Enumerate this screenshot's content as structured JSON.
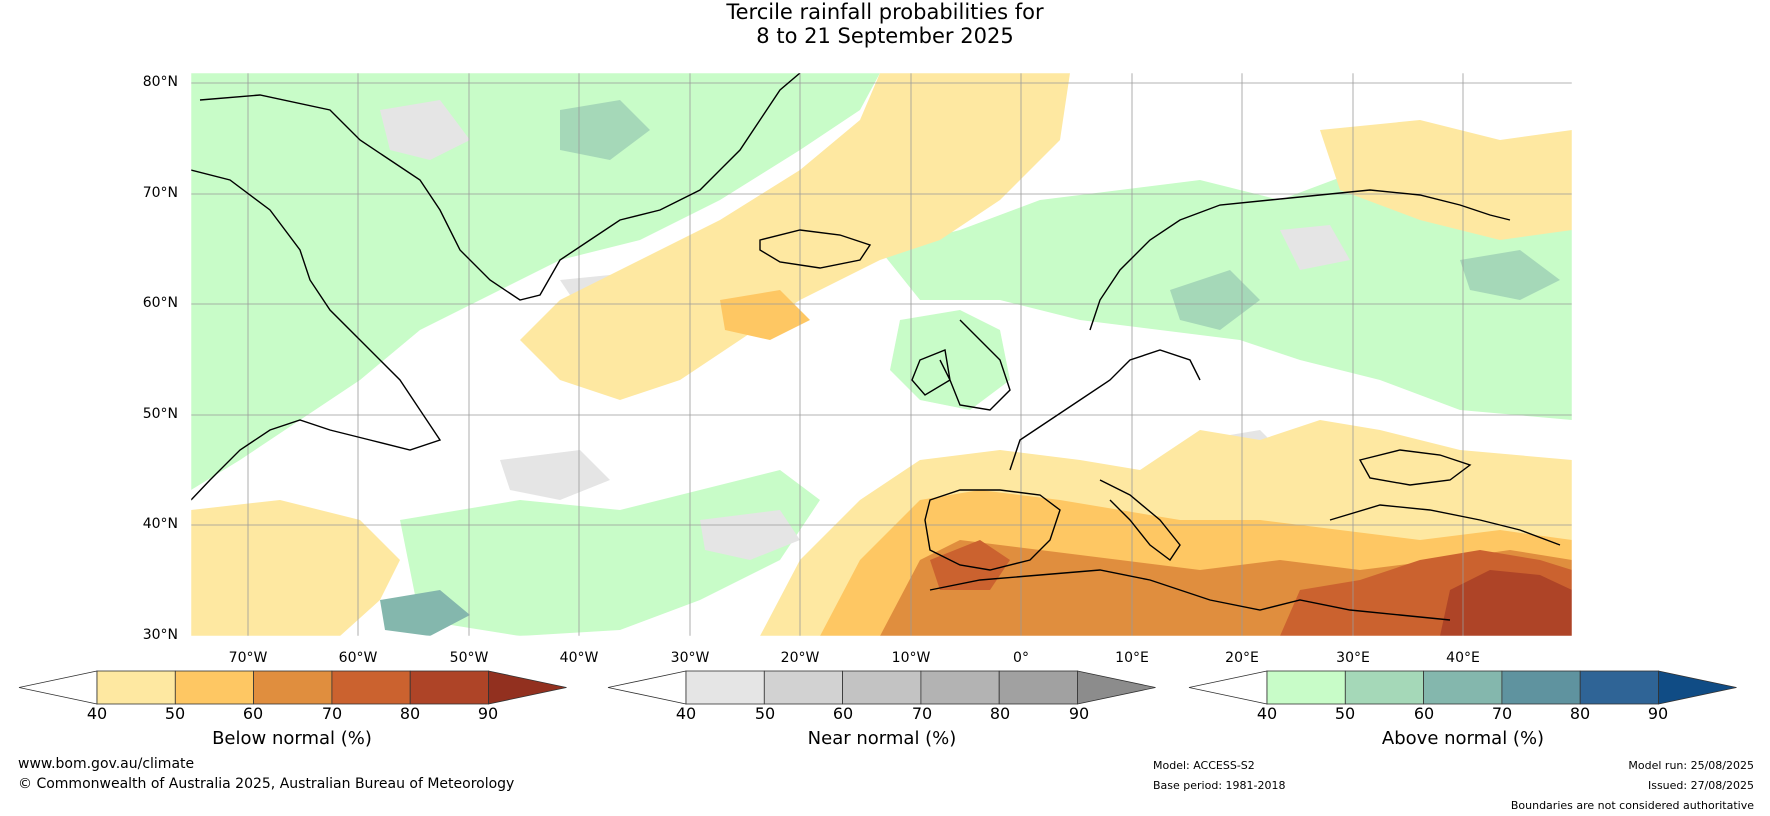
{
  "title": {
    "line1": "Tercile rainfall probabilities for",
    "line2": "8 to 21 September 2025"
  },
  "map": {
    "lat_labels": [
      "80°N",
      "70°N",
      "60°N",
      "50°N",
      "40°N",
      "30°N"
    ],
    "lon_labels": [
      "70°W",
      "60°W",
      "50°W",
      "40°W",
      "30°W",
      "20°W",
      "10°W",
      "0°",
      "10°E",
      "20°E",
      "30°E",
      "40°E"
    ]
  },
  "colorbars": [
    {
      "id": "below",
      "title": "Below normal (%)",
      "ticks": [
        "40",
        "50",
        "60",
        "70",
        "80",
        "90"
      ],
      "colors": [
        "#ffffff",
        "#fee8a1",
        "#fec763",
        "#e08e3e",
        "#cb622f",
        "#ae4427",
        "#92301f"
      ]
    },
    {
      "id": "near",
      "title": "Near normal (%)",
      "ticks": [
        "40",
        "50",
        "60",
        "70",
        "80",
        "90"
      ],
      "colors": [
        "#ffffff",
        "#e5e5e5",
        "#d2d2d2",
        "#c3c3c3",
        "#b3b3b3",
        "#a1a1a1",
        "#8c8c8c"
      ]
    },
    {
      "id": "above",
      "title": "Above normal (%)",
      "ticks": [
        "40",
        "50",
        "60",
        "70",
        "80",
        "90"
      ],
      "colors": [
        "#ffffff",
        "#c8fcc8",
        "#a5d8b8",
        "#84b7ad",
        "#5f939f",
        "#2f6496",
        "#104c85"
      ]
    }
  ],
  "footer": {
    "website": "www.bom.gov.au/climate",
    "copyright": "© Commonwealth of Australia 2025, Australian Bureau of Meteorology",
    "model": "Model: ACCESS-S2",
    "base_period": "Base period: 1981-2018",
    "model_run": "Model run: 25/08/2025",
    "issued": "Issued: 27/08/2025",
    "disclaimer": "Boundaries are not considered authoritative"
  }
}
